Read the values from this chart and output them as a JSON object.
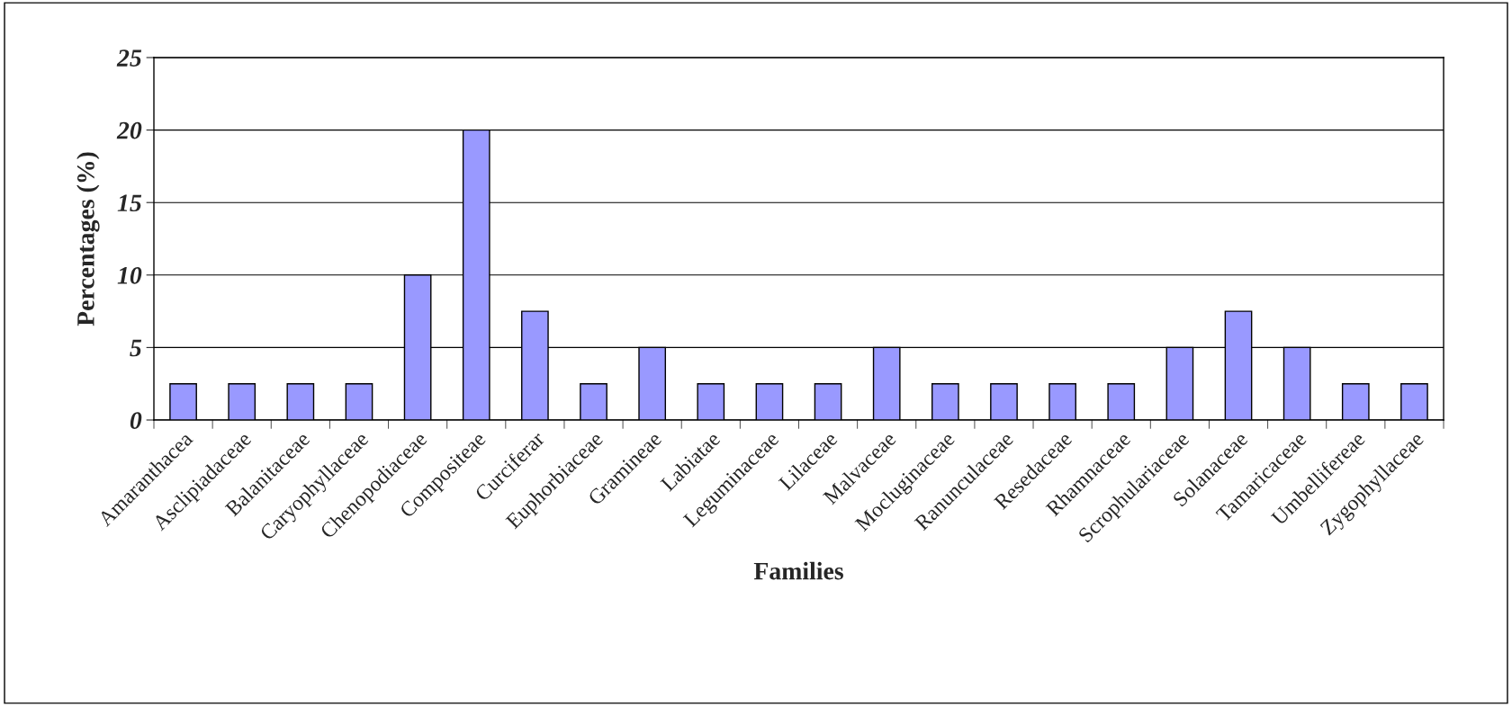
{
  "chart_data": {
    "type": "bar",
    "xlabel": "Families",
    "ylabel": "Percentages (%)",
    "categories": [
      "Amaranthacea",
      "Asclipiadaceae",
      "Balanitaceae",
      "Caryophyllaceae",
      "Chenopodiaceae",
      "Compositeae",
      "Curciferar",
      "Euphorbiaceae",
      "Gramineae",
      "Labiatae",
      "Leguminaceae",
      "Lilaceae",
      "Malvaceae",
      "Mocluginaceae",
      "Ranunculaceae",
      "Resedaceae",
      "Rhamnaceae",
      "Scrophulariaceae",
      "Solanaceae",
      "Tamaricaceae",
      "Umbellifereae",
      "Zygophyllaceae"
    ],
    "values": [
      2.5,
      2.5,
      2.5,
      2.5,
      10,
      20,
      7.5,
      2.5,
      5,
      2.5,
      2.5,
      2.5,
      5,
      2.5,
      2.5,
      2.5,
      2.5,
      5,
      7.5,
      5,
      2.5,
      2.5
    ],
    "color": "#9999ff",
    "ylim": [
      0,
      25
    ],
    "yticks": [
      0,
      5,
      10,
      15,
      20,
      25
    ],
    "grid": "y"
  }
}
